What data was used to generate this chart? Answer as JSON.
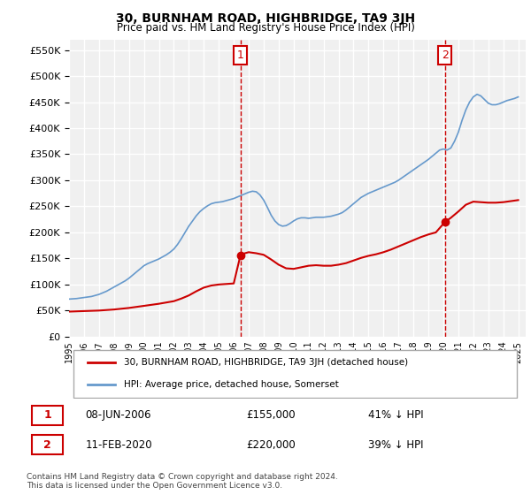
{
  "title": "30, BURNHAM ROAD, HIGHBRIDGE, TA9 3JH",
  "subtitle": "Price paid vs. HM Land Registry's House Price Index (HPI)",
  "ylim": [
    0,
    570000
  ],
  "yticks": [
    0,
    50000,
    100000,
    150000,
    200000,
    250000,
    300000,
    350000,
    400000,
    450000,
    500000,
    550000
  ],
  "ylabel_format": "£{0}K",
  "xlim_start": 1995.0,
  "xlim_end": 2025.5,
  "background_color": "#ffffff",
  "plot_bg_color": "#f0f0f0",
  "grid_color": "#ffffff",
  "red_line_color": "#cc0000",
  "blue_line_color": "#6699cc",
  "vline_color": "#cc0000",
  "marker1_x": 2006.44,
  "marker1_y": 155000,
  "marker2_x": 2020.11,
  "marker2_y": 220000,
  "legend_label_red": "30, BURNHAM ROAD, HIGHBRIDGE, TA9 3JH (detached house)",
  "legend_label_blue": "HPI: Average price, detached house, Somerset",
  "table_row1": [
    "1",
    "08-JUN-2006",
    "£155,000",
    "41% ↓ HPI"
  ],
  "table_row2": [
    "2",
    "11-FEB-2020",
    "£220,000",
    "39% ↓ HPI"
  ],
  "footer": "Contains HM Land Registry data © Crown copyright and database right 2024.\nThis data is licensed under the Open Government Licence v3.0.",
  "hpi_data_x": [
    1995.0,
    1995.25,
    1995.5,
    1995.75,
    1996.0,
    1996.25,
    1996.5,
    1996.75,
    1997.0,
    1997.25,
    1997.5,
    1997.75,
    1998.0,
    1998.25,
    1998.5,
    1998.75,
    1999.0,
    1999.25,
    1999.5,
    1999.75,
    2000.0,
    2000.25,
    2000.5,
    2000.75,
    2001.0,
    2001.25,
    2001.5,
    2001.75,
    2002.0,
    2002.25,
    2002.5,
    2002.75,
    2003.0,
    2003.25,
    2003.5,
    2003.75,
    2004.0,
    2004.25,
    2004.5,
    2004.75,
    2005.0,
    2005.25,
    2005.5,
    2005.75,
    2006.0,
    2006.25,
    2006.5,
    2006.75,
    2007.0,
    2007.25,
    2007.5,
    2007.75,
    2008.0,
    2008.25,
    2008.5,
    2008.75,
    2009.0,
    2009.25,
    2009.5,
    2009.75,
    2010.0,
    2010.25,
    2010.5,
    2010.75,
    2011.0,
    2011.25,
    2011.5,
    2011.75,
    2012.0,
    2012.25,
    2012.5,
    2012.75,
    2013.0,
    2013.25,
    2013.5,
    2013.75,
    2014.0,
    2014.25,
    2014.5,
    2014.75,
    2015.0,
    2015.25,
    2015.5,
    2015.75,
    2016.0,
    2016.25,
    2016.5,
    2016.75,
    2017.0,
    2017.25,
    2017.5,
    2017.75,
    2018.0,
    2018.25,
    2018.5,
    2018.75,
    2019.0,
    2019.25,
    2019.5,
    2019.75,
    2020.0,
    2020.25,
    2020.5,
    2020.75,
    2021.0,
    2021.25,
    2021.5,
    2021.75,
    2022.0,
    2022.25,
    2022.5,
    2022.75,
    2023.0,
    2023.25,
    2023.5,
    2023.75,
    2024.0,
    2024.25,
    2024.5,
    2024.75,
    2025.0
  ],
  "hpi_data_y": [
    72000,
    72500,
    73000,
    74000,
    75000,
    76000,
    77000,
    79000,
    81000,
    84000,
    87000,
    91000,
    95000,
    99000,
    103000,
    107000,
    112000,
    118000,
    124000,
    130000,
    136000,
    140000,
    143000,
    146000,
    149000,
    153000,
    157000,
    162000,
    168000,
    177000,
    188000,
    200000,
    212000,
    222000,
    232000,
    240000,
    246000,
    251000,
    255000,
    257000,
    258000,
    259000,
    261000,
    263000,
    265000,
    268000,
    271000,
    274000,
    277000,
    279000,
    278000,
    272000,
    262000,
    248000,
    233000,
    222000,
    215000,
    212000,
    213000,
    217000,
    222000,
    226000,
    228000,
    228000,
    227000,
    228000,
    229000,
    229000,
    229000,
    230000,
    231000,
    233000,
    235000,
    238000,
    243000,
    249000,
    255000,
    261000,
    267000,
    271000,
    275000,
    278000,
    281000,
    284000,
    287000,
    290000,
    293000,
    296000,
    300000,
    305000,
    310000,
    315000,
    320000,
    325000,
    330000,
    335000,
    340000,
    346000,
    352000,
    358000,
    360000,
    358000,
    362000,
    375000,
    392000,
    415000,
    435000,
    450000,
    460000,
    465000,
    462000,
    455000,
    448000,
    445000,
    445000,
    447000,
    450000,
    453000,
    455000,
    457000,
    460000
  ],
  "red_data_x": [
    1995.0,
    1995.5,
    1996.0,
    1996.5,
    1997.0,
    1997.5,
    1998.0,
    1998.5,
    1999.0,
    1999.5,
    2000.0,
    2000.5,
    2001.0,
    2001.5,
    2002.0,
    2002.5,
    2003.0,
    2003.5,
    2004.0,
    2004.5,
    2005.0,
    2005.5,
    2006.0,
    2006.44,
    2006.75,
    2007.0,
    2007.5,
    2008.0,
    2008.5,
    2009.0,
    2009.5,
    2010.0,
    2010.5,
    2011.0,
    2011.5,
    2012.0,
    2012.5,
    2013.0,
    2013.5,
    2014.0,
    2014.5,
    2015.0,
    2015.5,
    2016.0,
    2016.5,
    2017.0,
    2017.5,
    2018.0,
    2018.5,
    2019.0,
    2019.5,
    2020.11,
    2020.5,
    2021.0,
    2021.5,
    2022.0,
    2022.5,
    2023.0,
    2023.5,
    2024.0,
    2024.5,
    2025.0
  ],
  "red_data_y": [
    48000,
    48500,
    49000,
    49500,
    50000,
    51000,
    52000,
    53500,
    55000,
    57000,
    59000,
    61000,
    63000,
    65500,
    68000,
    73000,
    79000,
    87000,
    94000,
    98000,
    100000,
    101000,
    102000,
    155000,
    160000,
    162000,
    160000,
    157000,
    148000,
    138000,
    131000,
    130000,
    133000,
    136000,
    137000,
    136000,
    136000,
    138000,
    141000,
    146000,
    151000,
    155000,
    158000,
    162000,
    167000,
    173000,
    179000,
    185000,
    191000,
    196000,
    200000,
    220000,
    228000,
    240000,
    253000,
    259000,
    258000,
    257000,
    257000,
    258000,
    260000,
    262000
  ]
}
